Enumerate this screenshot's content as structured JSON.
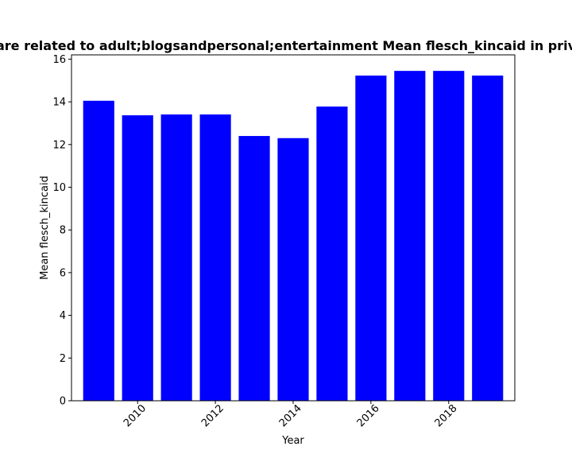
{
  "chart_data": {
    "type": "bar",
    "title": "are related to adult;blogsandpersonal;entertainment Mean flesch_kincaid in priv",
    "xlabel": "Year",
    "ylabel": "Mean flesch_kincaid",
    "x": [
      2009,
      2010,
      2011,
      2012,
      2013,
      2014,
      2015,
      2016,
      2017,
      2018,
      2019
    ],
    "values": [
      14.05,
      13.37,
      13.41,
      13.41,
      12.4,
      12.3,
      13.78,
      15.23,
      15.45,
      15.45,
      15.23
    ],
    "xticks": [
      "2010",
      "2012",
      "2014",
      "2016",
      "2018"
    ],
    "yticks": [
      "0",
      "2",
      "4",
      "6",
      "8",
      "10",
      "12",
      "14",
      "16"
    ],
    "ylim": [
      0,
      16.2
    ],
    "xlim": [
      2008.3,
      2019.7
    ],
    "bar_color": "#0000ff",
    "grid": false,
    "legend": "none"
  }
}
